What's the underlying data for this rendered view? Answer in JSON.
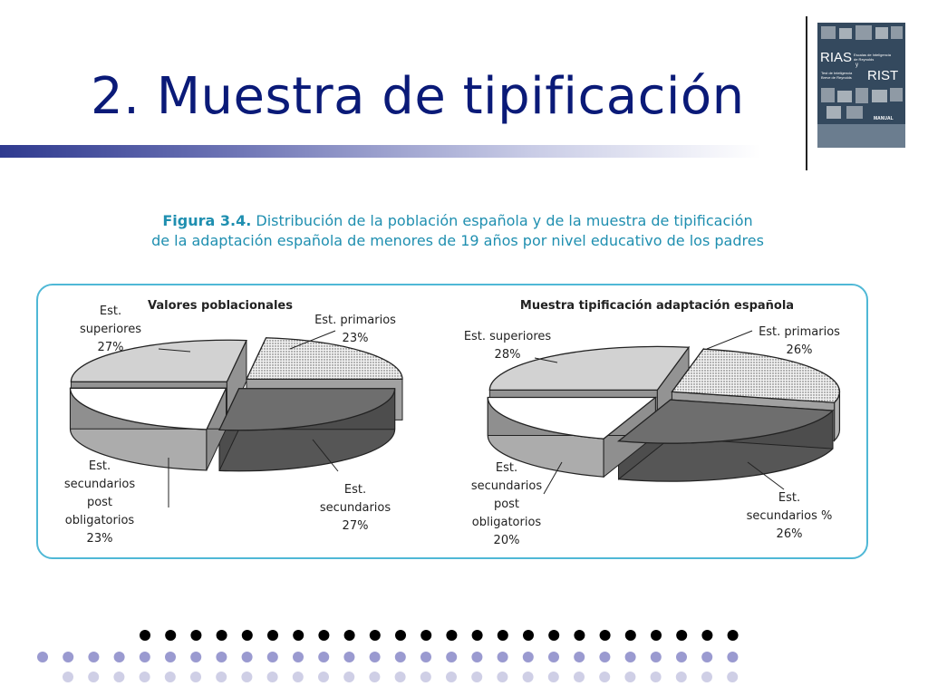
{
  "slide": {
    "title": "2. Muestra de tipificación",
    "figure_caption": {
      "label": "Figura 3.4.",
      "line1": "Distribución de la población española y de la muestra de tipificación",
      "line2": "de la adaptación española de menores de 19 años por nivel educativo de los padres"
    },
    "cover": {
      "rias": "RIAS",
      "rias_sub1": "Escalas de Inteligencia",
      "rias_sub2": "de Reynolds",
      "y": "y",
      "rist": "RIST",
      "rist_sub1": "Test de Inteligencia",
      "rist_sub2": "Breve de Reynolds",
      "manual": "MANUAL"
    }
  },
  "chart_data": [
    {
      "type": "pie",
      "title": "Valores poblacionales",
      "slices": [
        {
          "label": [
            "Est.",
            "superiores"
          ],
          "value_label": "27%",
          "value": 27,
          "color": "#d2d2d2"
        },
        {
          "label": [
            "Est. primarios"
          ],
          "value_label": "23%",
          "value": 23,
          "color": "#e6e6e6"
        },
        {
          "label": [
            "Est.",
            "secundarios"
          ],
          "value_label": "27%",
          "value": 27,
          "color": "#6e6e6e"
        },
        {
          "label": [
            "Est.",
            "secundarios",
            "post",
            "obligatorios"
          ],
          "value_label": "23%",
          "value": 23,
          "color": "#ffffff"
        }
      ]
    },
    {
      "type": "pie",
      "title": "Muestra tipificación adaptación española",
      "slices": [
        {
          "label": [
            "Est. superiores"
          ],
          "value_label": "28%",
          "value": 28,
          "color": "#d2d2d2"
        },
        {
          "label": [
            "Est. primarios"
          ],
          "value_label": "26%",
          "value": 26,
          "color": "#e6e6e6"
        },
        {
          "label": [
            "Est.",
            "secundarios %"
          ],
          "value_label": "26%",
          "value": 26,
          "color": "#6e6e6e"
        },
        {
          "label": [
            "Est.",
            "secundarios",
            "post",
            "obligatorios"
          ],
          "value_label": "20%",
          "value": 20,
          "color": "#ffffff"
        }
      ]
    }
  ],
  "decor": {
    "dot_colors": [
      "#000000",
      "#9a9ad0",
      "#cfcfe6"
    ]
  }
}
